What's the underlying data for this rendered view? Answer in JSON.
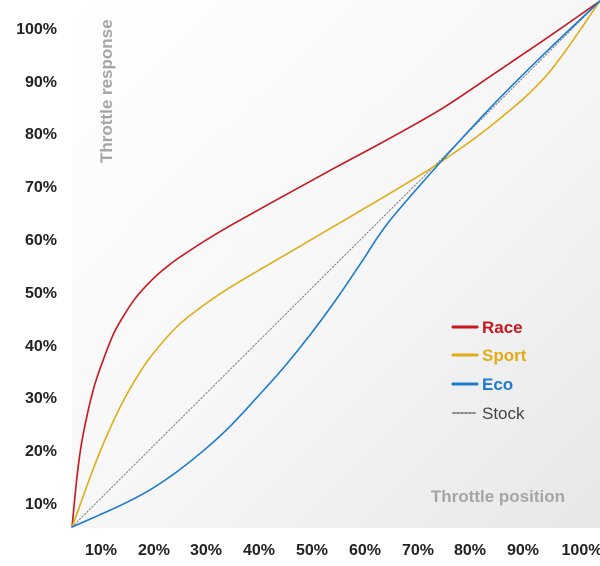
{
  "chart_data": {
    "type": "line",
    "xlabel": "Throttle position",
    "ylabel": "Throttle response",
    "xlim": [
      0,
      100
    ],
    "ylim": [
      0,
      100
    ],
    "x_ticks": [
      "10%",
      "20%",
      "30%",
      "40%",
      "50%",
      "60%",
      "70%",
      "80%",
      "90%",
      "100%"
    ],
    "y_ticks": [
      "10%",
      "20%",
      "30%",
      "40%",
      "50%",
      "60%",
      "70%",
      "80%",
      "90%",
      "100%"
    ],
    "grid": false,
    "legend_position": "right",
    "series": [
      {
        "name": "Race",
        "color": "#c8171e",
        "style": "solid",
        "x": [
          0,
          1,
          2,
          4,
          6,
          8,
          10,
          12,
          14,
          16,
          18,
          20,
          25,
          30,
          40,
          50,
          60,
          70,
          80,
          90,
          100
        ],
        "y": [
          0,
          10,
          17,
          26,
          32,
          37,
          40.5,
          43.5,
          45.8,
          47.8,
          49.5,
          51,
          54.3,
          57.3,
          62.9,
          68.4,
          73.8,
          79.5,
          86.2,
          93,
          100
        ]
      },
      {
        "name": "Sport",
        "color": "#e0ac17",
        "style": "solid",
        "x": [
          0,
          2,
          4,
          6,
          8,
          10,
          12,
          15,
          20,
          25,
          30,
          40,
          50,
          60,
          70,
          80,
          90,
          100
        ],
        "y": [
          0,
          5.5,
          11,
          16,
          20.5,
          24.5,
          28,
          32.5,
          38.2,
          42.2,
          45.6,
          51.5,
          57.4,
          63.3,
          69.5,
          76.8,
          86,
          100
        ]
      },
      {
        "name": "Eco",
        "color": "#1a7bd0",
        "style": "solid",
        "x": [
          0,
          5,
          10,
          15,
          20,
          25,
          30,
          35,
          40,
          45,
          50,
          55,
          60,
          70,
          80,
          90,
          100
        ],
        "y": [
          0,
          2.2,
          4.5,
          7.2,
          10.6,
          14.6,
          19.2,
          24.6,
          30.2,
          36.4,
          43.2,
          50.6,
          58,
          69.6,
          80.5,
          90.5,
          100
        ]
      },
      {
        "name": "Stock",
        "color": "#8a8a8a",
        "style": "dotted",
        "x": [
          0,
          100
        ],
        "y": [
          0,
          100
        ]
      }
    ]
  }
}
